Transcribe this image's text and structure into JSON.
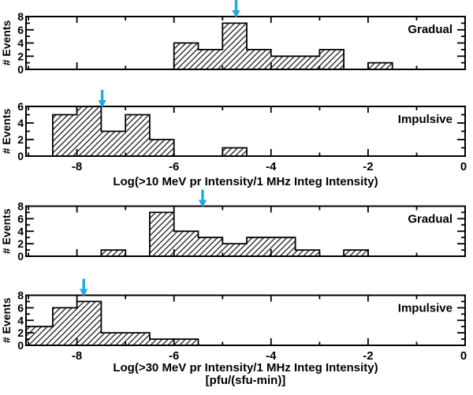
{
  "colors": {
    "ink": "#000000",
    "arrow": "#1ea9e0",
    "background": "#ffffff"
  },
  "chart_data": [
    {
      "id": "gradual-10mev",
      "type": "bar",
      "panel_label": "Gradual",
      "ylabel": "# Events",
      "ylim": [
        0,
        8
      ],
      "yticks": [
        0,
        2,
        4,
        6,
        8
      ],
      "xlim": [
        -9.05,
        0
      ],
      "xticks_major": [
        -8,
        -6,
        -4,
        -2,
        0
      ],
      "xticks_minor": [
        -9,
        -7,
        -5,
        -3,
        -1
      ],
      "bin_width": 0.5,
      "bins": [
        {
          "x0": -6.0,
          "x1": -5.5,
          "count": 4
        },
        {
          "x0": -5.5,
          "x1": -5.0,
          "count": 3
        },
        {
          "x0": -5.0,
          "x1": -4.5,
          "count": 7
        },
        {
          "x0": -4.5,
          "x1": -4.0,
          "count": 3
        },
        {
          "x0": -4.0,
          "x1": -3.5,
          "count": 2
        },
        {
          "x0": -3.5,
          "x1": -3.0,
          "count": 2
        },
        {
          "x0": -3.0,
          "x1": -2.5,
          "count": 3
        },
        {
          "x0": -2.0,
          "x1": -1.5,
          "count": 1
        }
      ],
      "arrow_x": -4.72,
      "xtick_labels": [],
      "xlabel": "",
      "xlabel_units": ""
    },
    {
      "id": "impulsive-10mev",
      "type": "bar",
      "panel_label": "Impulsive",
      "ylabel": "# Events",
      "ylim": [
        0,
        6
      ],
      "yticks": [
        0,
        2,
        4,
        6
      ],
      "xlim": [
        -9.05,
        0
      ],
      "xticks_major": [
        -8,
        -6,
        -4,
        -2,
        0
      ],
      "xticks_minor": [
        -9,
        -7,
        -5,
        -3,
        -1
      ],
      "bin_width": 0.5,
      "bins": [
        {
          "x0": -8.5,
          "x1": -8.0,
          "count": 5
        },
        {
          "x0": -8.0,
          "x1": -7.5,
          "count": 6
        },
        {
          "x0": -7.5,
          "x1": -7.0,
          "count": 3
        },
        {
          "x0": -7.0,
          "x1": -6.5,
          "count": 5
        },
        {
          "x0": -6.5,
          "x1": -6.0,
          "count": 2
        },
        {
          "x0": -5.0,
          "x1": -4.5,
          "count": 1
        }
      ],
      "arrow_x": -7.48,
      "xtick_labels": [
        {
          "value": -8,
          "label": "-8"
        },
        {
          "value": -6,
          "label": "-6"
        },
        {
          "value": -4,
          "label": "-4"
        },
        {
          "value": -2,
          "label": "-2"
        },
        {
          "value": 0,
          "label": "0"
        }
      ],
      "xlabel": "Log(>10 MeV pr Intensity/1 MHz Integ Intensity)",
      "xlabel_units": ""
    },
    {
      "id": "gradual-30mev",
      "type": "bar",
      "panel_label": "Gradual",
      "ylabel": "# Events",
      "ylim": [
        0,
        8
      ],
      "yticks": [
        0,
        2,
        4,
        6,
        8
      ],
      "xlim": [
        -9.05,
        0
      ],
      "xticks_major": [
        -8,
        -6,
        -4,
        -2,
        0
      ],
      "xticks_minor": [
        -9,
        -7,
        -5,
        -3,
        -1
      ],
      "bin_width": 0.5,
      "bins": [
        {
          "x0": -7.5,
          "x1": -7.0,
          "count": 1
        },
        {
          "x0": -6.5,
          "x1": -6.0,
          "count": 7
        },
        {
          "x0": -6.0,
          "x1": -5.5,
          "count": 4
        },
        {
          "x0": -5.5,
          "x1": -5.0,
          "count": 3
        },
        {
          "x0": -5.0,
          "x1": -4.5,
          "count": 2
        },
        {
          "x0": -4.5,
          "x1": -4.0,
          "count": 3
        },
        {
          "x0": -4.0,
          "x1": -3.5,
          "count": 3
        },
        {
          "x0": -3.5,
          "x1": -3.0,
          "count": 1
        },
        {
          "x0": -2.5,
          "x1": -2.0,
          "count": 1
        }
      ],
      "arrow_x": -5.41,
      "xtick_labels": [],
      "xlabel": "",
      "xlabel_units": ""
    },
    {
      "id": "impulsive-30mev",
      "type": "bar",
      "panel_label": "Impulsive",
      "ylabel": "# Events",
      "ylim": [
        0,
        8
      ],
      "yticks": [
        0,
        2,
        4,
        6,
        8
      ],
      "xlim": [
        -9.05,
        0
      ],
      "xticks_major": [
        -8,
        -6,
        -4,
        -2,
        0
      ],
      "xticks_minor": [
        -9,
        -7,
        -5,
        -3,
        -1
      ],
      "bin_width": 0.5,
      "bins": [
        {
          "x0": -9.05,
          "x1": -8.5,
          "count": 3
        },
        {
          "x0": -8.5,
          "x1": -8.0,
          "count": 6
        },
        {
          "x0": -8.0,
          "x1": -7.5,
          "count": 7
        },
        {
          "x0": -7.5,
          "x1": -7.0,
          "count": 2
        },
        {
          "x0": -7.0,
          "x1": -6.5,
          "count": 2
        },
        {
          "x0": -6.5,
          "x1": -6.0,
          "count": 1
        },
        {
          "x0": -6.0,
          "x1": -5.5,
          "count": 1
        }
      ],
      "arrow_x": -7.86,
      "xtick_labels": [
        {
          "value": -8,
          "label": "-8"
        },
        {
          "value": -6,
          "label": "-6"
        },
        {
          "value": -4,
          "label": "-4"
        },
        {
          "value": -2,
          "label": "-2"
        },
        {
          "value": 0,
          "label": "0"
        }
      ],
      "xlabel": "Log(>30 MeV pr Intensity/1 MHz Integ Intensity)",
      "xlabel_units": "[pfu/(sfu-min)]"
    }
  ]
}
